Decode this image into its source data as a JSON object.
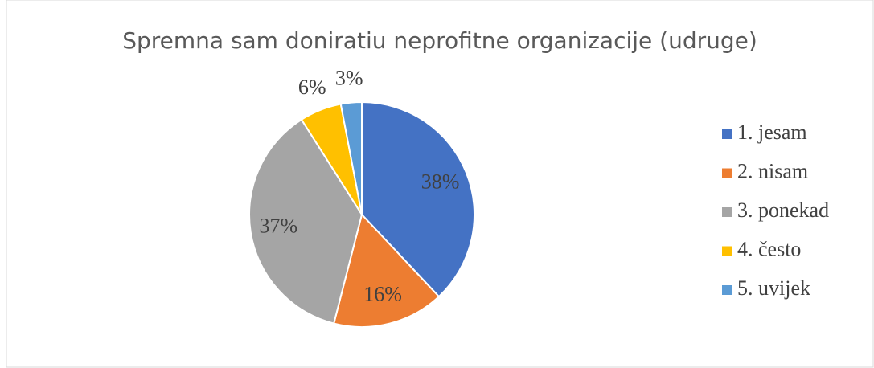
{
  "chart_data": {
    "type": "pie",
    "title": "Spremna sam doniratiu neprofitne organizacije (udruge)",
    "categories": [
      "1. jesam",
      "2. nisam",
      "3. ponekad",
      "4. često",
      "5. uvijek"
    ],
    "values": [
      38,
      16,
      37,
      6,
      3
    ],
    "value_labels": [
      "38%",
      "16%",
      "37%",
      "6%",
      "3%"
    ],
    "colors": [
      "#4472c4",
      "#ed7d31",
      "#a5a5a5",
      "#ffc000",
      "#5b9bd5"
    ],
    "legend": "right"
  }
}
